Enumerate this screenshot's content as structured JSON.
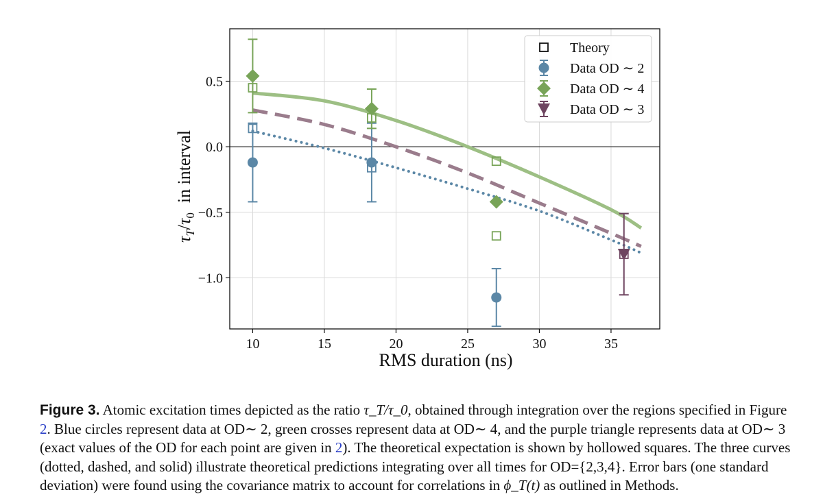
{
  "chart_data": {
    "type": "scatter",
    "xlabel": "RMS duration (ns)",
    "ylabel": "τ_T/τ_0 in interval",
    "ylabel_math": "τ",
    "ylabel_sub1": "T",
    "ylabel_slash": "/",
    "ylabel_sub0": "0",
    "ylabel_rest": "in interval",
    "xlim": [
      8.4,
      38.4
    ],
    "ylim": [
      -1.39,
      0.9
    ],
    "xticks": [
      10,
      15,
      20,
      25,
      30,
      35
    ],
    "yticks": [
      0.5,
      0.0,
      -0.5,
      -1.0
    ],
    "xtick_labels": [
      "10",
      "15",
      "20",
      "25",
      "30",
      "35"
    ],
    "ytick_labels": [
      "0.5",
      "0.0",
      "−0.5",
      "−1.0"
    ],
    "grid": true,
    "zero_line": true,
    "legend_position": "top-right",
    "colors": {
      "od2": "#5b87a6",
      "od4": "#78a458",
      "od3": "#6e4560",
      "dashed": "#9a7c8c",
      "solid": "#9dbf84"
    },
    "curves": [
      {
        "name": "Theory OD=2 (dotted)",
        "style": "dotted",
        "x": [
          10,
          15,
          20,
          25,
          30,
          35,
          37.1
        ],
        "y": [
          0.12,
          -0.01,
          -0.16,
          -0.32,
          -0.49,
          -0.71,
          -0.81
        ]
      },
      {
        "name": "Theory OD=3 (dashed)",
        "style": "dashed",
        "x": [
          10,
          15,
          20,
          25,
          30,
          35,
          37.1
        ],
        "y": [
          0.28,
          0.17,
          0.0,
          -0.2,
          -0.43,
          -0.66,
          -0.76
        ]
      },
      {
        "name": "Theory OD=4 (solid)",
        "style": "solid",
        "x": [
          10,
          15,
          20,
          25,
          30,
          35,
          37.1
        ],
        "y": [
          0.41,
          0.35,
          0.2,
          0.0,
          -0.23,
          -0.48,
          -0.62
        ]
      }
    ],
    "series": [
      {
        "name": "Theory",
        "marker": "square-open",
        "points": [
          {
            "x": 10,
            "y": 0.14,
            "color": "od2"
          },
          {
            "x": 10,
            "y": 0.45,
            "color": "od4"
          },
          {
            "x": 18.3,
            "y": -0.16,
            "color": "od2"
          },
          {
            "x": 18.3,
            "y": 0.22,
            "color": "od4"
          },
          {
            "x": 27.0,
            "y": -0.11,
            "color": "od4"
          },
          {
            "x": 27.0,
            "y": -0.68,
            "color": "od4"
          },
          {
            "x": 35.9,
            "y": -0.82,
            "color": "od3"
          }
        ]
      },
      {
        "name": "Data OD ∼ 2",
        "marker": "circle",
        "color": "od2",
        "points": [
          {
            "x": 10,
            "y": -0.12,
            "err": 0.3
          },
          {
            "x": 18.3,
            "y": -0.12,
            "err": 0.3
          },
          {
            "x": 27.0,
            "y": -1.15,
            "err": 0.22
          }
        ]
      },
      {
        "name": "Data OD ∼ 4",
        "marker": "diamond",
        "color": "od4",
        "points": [
          {
            "x": 10,
            "y": 0.54,
            "err": 0.28
          },
          {
            "x": 18.3,
            "y": 0.29,
            "err": 0.15
          },
          {
            "x": 27.0,
            "y": -0.42,
            "err": 0.0
          }
        ]
      },
      {
        "name": "Data OD ∼ 3",
        "marker": "triangle-down",
        "color": "od3",
        "points": [
          {
            "x": 35.9,
            "y": -0.82,
            "err": 0.31
          }
        ]
      }
    ],
    "legend": [
      {
        "label": "Theory",
        "marker": "square-open",
        "color": "#111111"
      },
      {
        "label": "Data OD ∼ 2",
        "marker": "circle",
        "color": "#5b87a6"
      },
      {
        "label": "Data OD ∼ 4",
        "marker": "diamond",
        "color": "#78a458"
      },
      {
        "label": "Data OD ∼ 3",
        "marker": "triangle-down",
        "color": "#6e4560"
      }
    ]
  },
  "caption": {
    "label": "Figure 3.",
    "p1": " Atomic excitation times depicted as the ratio ",
    "ratio": "τ_T/τ_0",
    "p2": ", obtained through integration over the regions specified in Figure ",
    "ref1": "2",
    "p3": ". Blue circles represent data at OD∼ 2, green crosses represent data at OD∼ 4, and the purple triangle represents data at OD∼ 3 (exact values of the OD for each point are given in ",
    "ref2": "2",
    "p4": "). The theoretical expectation is shown by hollowed squares. The three curves (dotted, dashed, and solid) illustrate theoretical predictions integrating over all times for OD={2,3,4}. Error bars (one standard deviation) were found using the covariance matrix to account for correlations in ",
    "phi": "ϕ_T(t)",
    "p5": " as outlined in Methods."
  }
}
